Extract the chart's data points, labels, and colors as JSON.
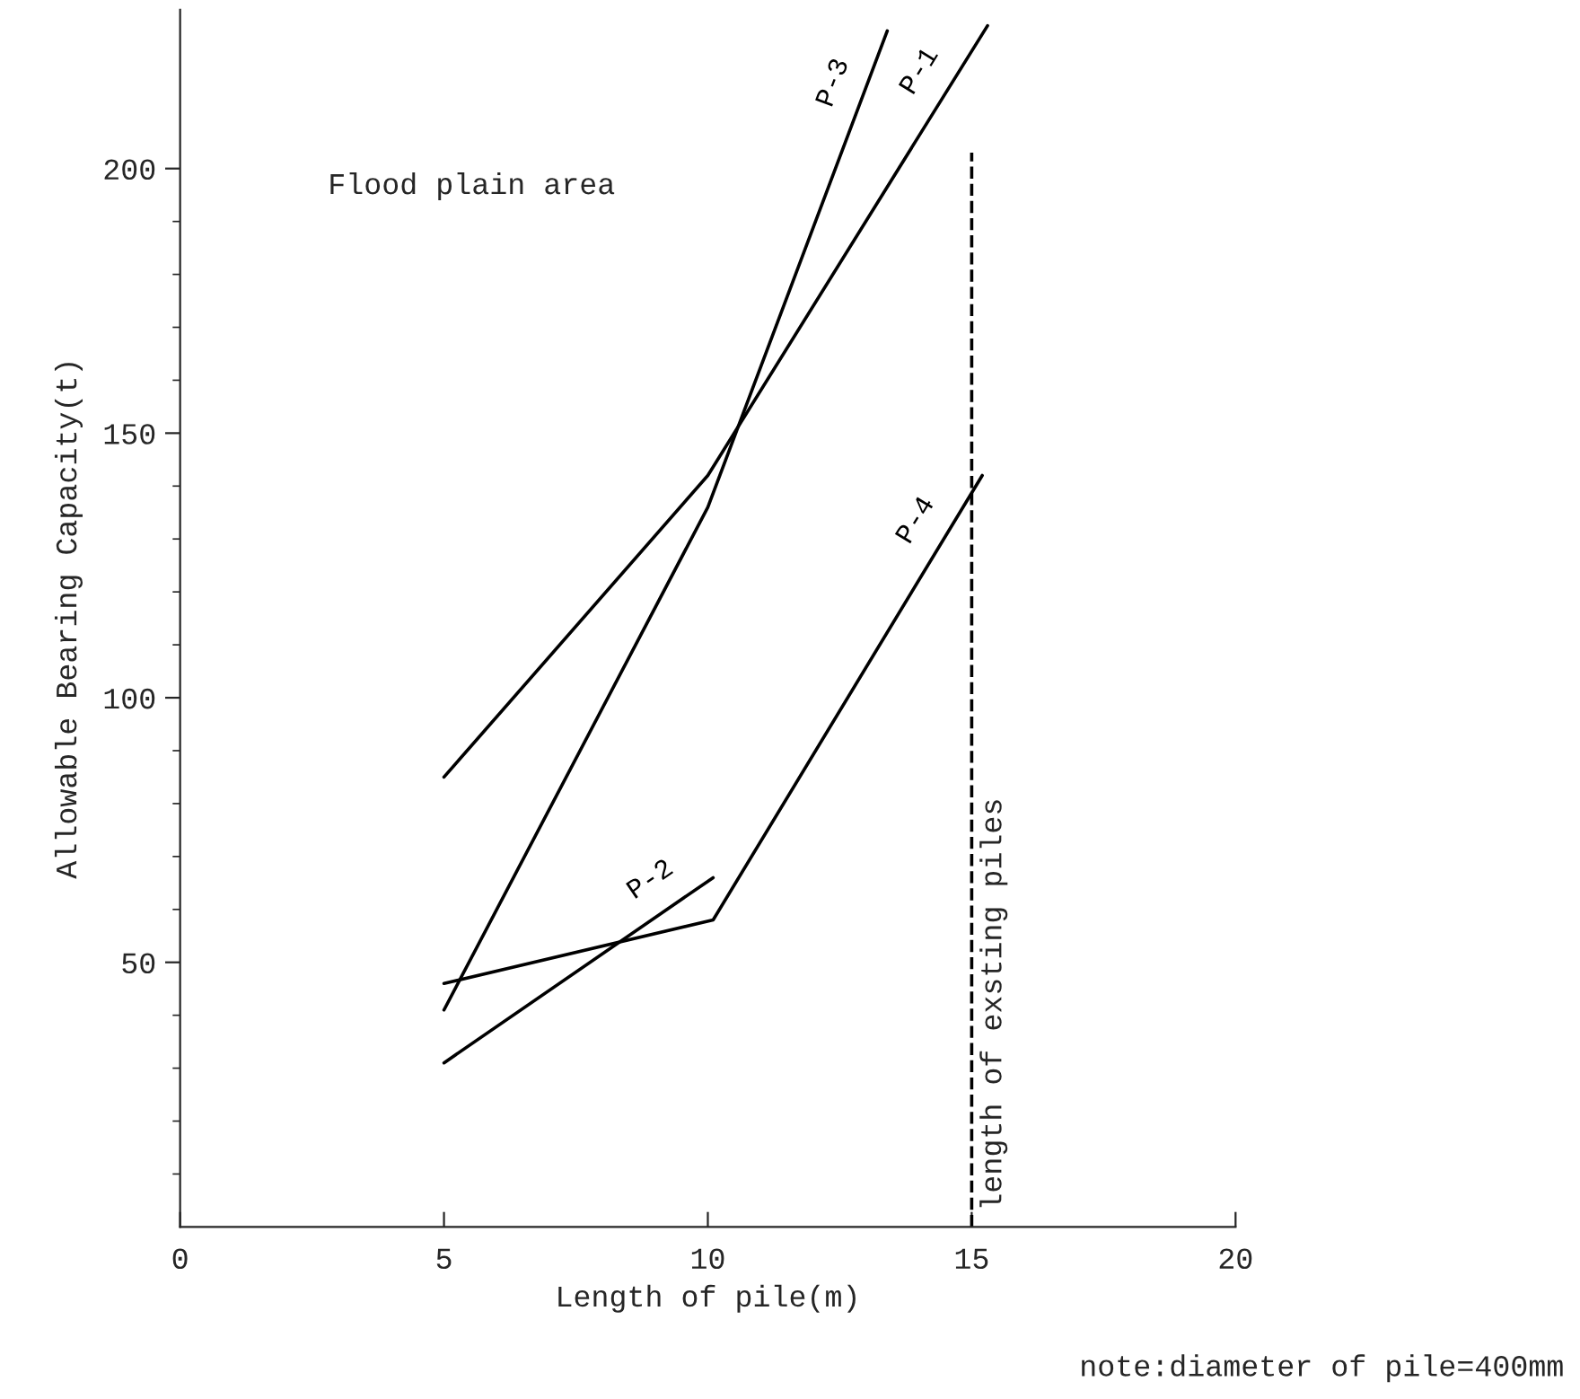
{
  "chart_data": {
    "type": "line",
    "xlabel": "Length of pile(m)",
    "ylabel": "Allowable Bearing Capacity(t)",
    "series": [
      {
        "name": "P-1",
        "color": "#000000",
        "x": [
          5,
          10,
          15.3
        ],
        "values": [
          85,
          142,
          227
        ]
      },
      {
        "name": "P-2",
        "color": "#000000",
        "x": [
          5,
          10.1
        ],
        "values": [
          31,
          66
        ]
      },
      {
        "name": "P-3",
        "color": "#000000",
        "x": [
          5,
          10,
          13.4
        ],
        "values": [
          41,
          136,
          226
        ]
      },
      {
        "name": "P-4",
        "color": "#000000",
        "x": [
          5,
          10.1,
          15.2
        ],
        "values": [
          46,
          58,
          142
        ]
      }
    ],
    "xlim": [
      0,
      20
    ],
    "ylim": [
      0,
      230
    ],
    "xticks": [
      0,
      5,
      10,
      15,
      20
    ],
    "yticks": [
      50,
      100,
      150,
      200
    ],
    "ref_lines": [
      {
        "axis": "x",
        "value": 15,
        "label": "length of exsting piles",
        "color": "#000000",
        "line_style": "dashed"
      }
    ],
    "annotations": [
      "Flood plain area",
      "note:diameter of pile=400mm"
    ],
    "grid": false,
    "legend": false,
    "marker": "none",
    "line_style": "solid"
  }
}
